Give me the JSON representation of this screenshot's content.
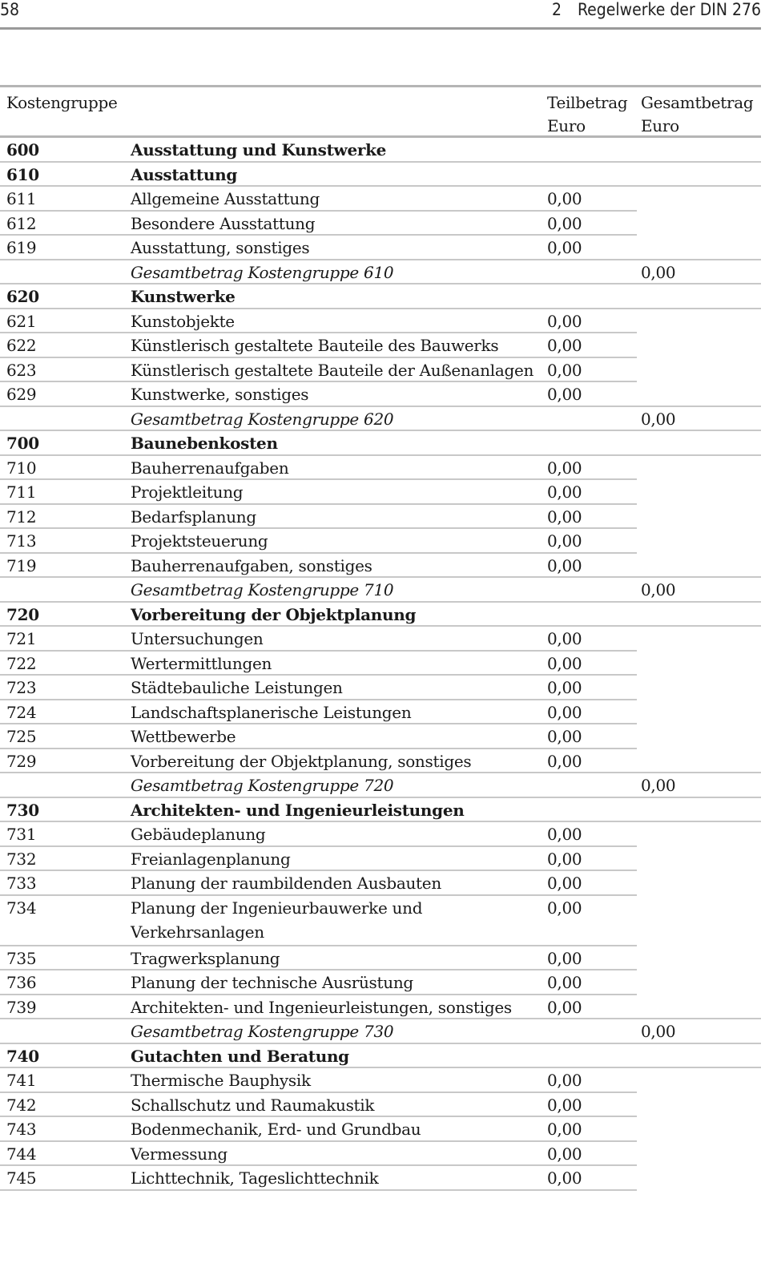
{
  "header": {
    "page_number": "58",
    "chapter_number": "2",
    "chapter_title": "Regelwerke der DIN 276"
  },
  "table": {
    "columns": {
      "code": "Kostengruppe",
      "teil_1": "Teilbetrag",
      "teil_2": "Euro",
      "ges_1": "Gesamtbetrag",
      "ges_2": "Euro"
    },
    "rows": [
      {
        "type": "group",
        "code": "600",
        "label": "Ausstattung und Kunstwerke"
      },
      {
        "type": "group",
        "code": "610",
        "label": "Ausstattung"
      },
      {
        "type": "item",
        "code": "611",
        "label": "Allgemeine Ausstattung",
        "teil": "0,00"
      },
      {
        "type": "item",
        "code": "612",
        "label": "Besondere Ausstattung",
        "teil": "0,00"
      },
      {
        "type": "item",
        "code": "619",
        "label": "Ausstattung, sonstiges",
        "teil": "0,00"
      },
      {
        "type": "total",
        "label": "Gesamtbetrag Kostengruppe 610",
        "gesamt": "0,00"
      },
      {
        "type": "group",
        "code": "620",
        "label": "Kunstwerke"
      },
      {
        "type": "item",
        "code": "621",
        "label": "Kunstobjekte",
        "teil": "0,00"
      },
      {
        "type": "item",
        "code": "622",
        "label": "Künstlerisch gestaltete Bauteile des Bauwerks",
        "teil": "0,00"
      },
      {
        "type": "item",
        "code": "623",
        "label": "Künstlerisch gestaltete Bauteile der Außenanlagen",
        "teil": "0,00"
      },
      {
        "type": "item",
        "code": "629",
        "label": "Kunstwerke, sonstiges",
        "teil": "0,00"
      },
      {
        "type": "total",
        "label": "Gesamtbetrag Kostengruppe 620",
        "gesamt": "0,00"
      },
      {
        "type": "group",
        "code": "700",
        "label": "Baunebenkosten"
      },
      {
        "type": "item",
        "code": "710",
        "label": "Bauherrenaufgaben",
        "teil": "0,00"
      },
      {
        "type": "item",
        "code": "711",
        "label": "Projektleitung",
        "teil": "0,00"
      },
      {
        "type": "item",
        "code": "712",
        "label": "Bedarfsplanung",
        "teil": "0,00"
      },
      {
        "type": "item",
        "code": "713",
        "label": "Projektsteuerung",
        "teil": "0,00"
      },
      {
        "type": "item",
        "code": "719",
        "label": "Bauherrenaufgaben, sonstiges",
        "teil": "0,00"
      },
      {
        "type": "total",
        "label": "Gesamtbetrag Kostengruppe 710",
        "gesamt": "0,00"
      },
      {
        "type": "group",
        "code": "720",
        "label": "Vorbereitung der Objektplanung"
      },
      {
        "type": "item",
        "code": "721",
        "label": "Untersuchungen",
        "teil": "0,00"
      },
      {
        "type": "item",
        "code": "722",
        "label": "Wertermittlungen",
        "teil": "0,00"
      },
      {
        "type": "item",
        "code": "723",
        "label": "Städtebauliche Leistungen",
        "teil": "0,00"
      },
      {
        "type": "item",
        "code": "724",
        "label": "Landschaftsplanerische Leistungen",
        "teil": "0,00"
      },
      {
        "type": "item",
        "code": "725",
        "label": "Wettbewerbe",
        "teil": "0,00"
      },
      {
        "type": "item",
        "code": "729",
        "label": "Vorbereitung der Objektplanung, sonstiges",
        "teil": "0,00"
      },
      {
        "type": "total",
        "label": "Gesamtbetrag Kostengruppe 720",
        "gesamt": "0,00"
      },
      {
        "type": "group",
        "code": "730",
        "label": "Architekten- und Ingenieurleistungen"
      },
      {
        "type": "item",
        "code": "731",
        "label": "Gebäudeplanung",
        "teil": "0,00"
      },
      {
        "type": "item",
        "code": "732",
        "label": "Freianlagenplanung",
        "teil": "0,00"
      },
      {
        "type": "item",
        "code": "733",
        "label": "Planung der raumbildenden Ausbauten",
        "teil": "0,00"
      },
      {
        "type": "item",
        "code": "734",
        "label": "Planung der Ingenieurbauwerke und",
        "label2": "Verkehrsanlagen",
        "teil": "0,00"
      },
      {
        "type": "item",
        "code": "735",
        "label": "Tragwerksplanung",
        "teil": "0,00"
      },
      {
        "type": "item",
        "code": "736",
        "label": "Planung der technische Ausrüstung",
        "teil": "0,00"
      },
      {
        "type": "item",
        "code": "739",
        "label": "Architekten- und Ingenieurleistungen, sonstiges",
        "teil": "0,00"
      },
      {
        "type": "total",
        "label": "Gesamtbetrag Kostengruppe 730",
        "gesamt": "0,00"
      },
      {
        "type": "group",
        "code": "740",
        "label": "Gutachten und Beratung"
      },
      {
        "type": "item",
        "code": "741",
        "label": "Thermische Bauphysik",
        "teil": "0,00"
      },
      {
        "type": "item",
        "code": "742",
        "label": "Schallschutz und Raumakustik",
        "teil": "0,00"
      },
      {
        "type": "item",
        "code": "743",
        "label": "Bodenmechanik, Erd- und Grundbau",
        "teil": "0,00"
      },
      {
        "type": "item",
        "code": "744",
        "label": "Vermessung",
        "teil": "0,00"
      },
      {
        "type": "item",
        "code": "745",
        "label": "Lichttechnik, Tageslichttechnik",
        "teil": "0,00"
      }
    ]
  }
}
